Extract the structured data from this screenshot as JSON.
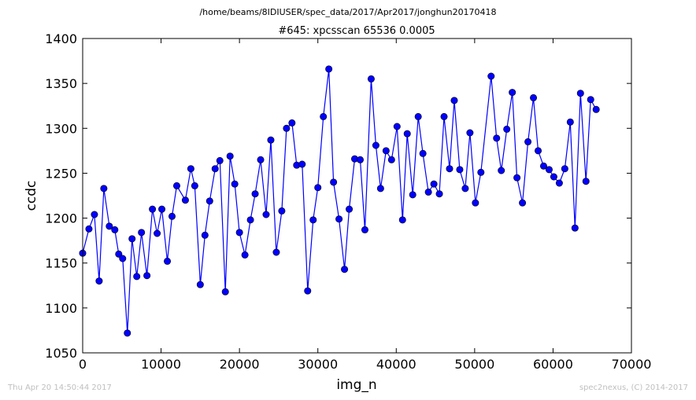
{
  "header": {
    "path": "/home/beams/8IDIUSER/spec_data/2017/Apr2017/jonghun20170418"
  },
  "footer": {
    "timestamp": "Thu Apr 20 14:50:44 2017",
    "credit": "spec2nexus, (C) 2014-2017"
  },
  "chart_data": {
    "type": "line",
    "title": "#645: xpcsscan 65536 0.0005",
    "xlabel": "img_n",
    "ylabel": "ccdc",
    "xlim": [
      0,
      70000
    ],
    "ylim": [
      1050,
      1400
    ],
    "xticks": [
      0,
      10000,
      20000,
      30000,
      40000,
      50000,
      60000,
      70000
    ],
    "yticks": [
      1050,
      1100,
      1150,
      1200,
      1250,
      1300,
      1350,
      1400
    ],
    "grid": false,
    "color": "#0000ff",
    "marker": "circle",
    "series": [
      {
        "x": [
          0,
          800,
          1500,
          2100,
          2700,
          3400,
          4100,
          4600,
          5100,
          5700,
          6300,
          6900,
          7500,
          8200,
          8900,
          9500,
          10100,
          10800,
          11400,
          12000,
          13100,
          13800,
          14300,
          15000,
          15600,
          16200,
          16900,
          17500,
          18200,
          18800,
          19400,
          20000,
          20700,
          21400,
          22000,
          22700,
          23400,
          24000,
          24700,
          25400,
          26000,
          26700,
          27300,
          28000,
          28700,
          29400,
          30000,
          30700,
          31400,
          32000,
          32700,
          33400,
          34000,
          34700,
          35400,
          36000,
          36800,
          37400,
          38000,
          38700,
          39400,
          40100,
          40800,
          41400,
          42100,
          42800,
          43400,
          44100,
          44800,
          45500,
          46100,
          46800,
          47400,
          48100,
          48800,
          49400,
          50100,
          50800,
          52100,
          52800,
          53400,
          54100,
          54800,
          55400,
          56100,
          56800,
          57500,
          58100,
          58800,
          59500,
          60100,
          60800,
          61500,
          62200,
          62800,
          63500,
          64200,
          64800,
          65500
        ],
        "y": [
          1161,
          1188,
          1204,
          1130,
          1233,
          1191,
          1187,
          1160,
          1155,
          1072,
          1177,
          1135,
          1184,
          1136,
          1210,
          1183,
          1210,
          1152,
          1202,
          1236,
          1220,
          1255,
          1236,
          1126,
          1181,
          1219,
          1255,
          1264,
          1118,
          1269,
          1238,
          1184,
          1159,
          1198,
          1227,
          1265,
          1204,
          1287,
          1162,
          1208,
          1300,
          1306,
          1259,
          1260,
          1119,
          1198,
          1234,
          1313,
          1366,
          1240,
          1199,
          1143,
          1210,
          1266,
          1265,
          1187,
          1355,
          1281,
          1233,
          1275,
          1265,
          1302,
          1198,
          1294,
          1226,
          1313,
          1272,
          1229,
          1238,
          1227,
          1313,
          1255,
          1331,
          1254,
          1233,
          1295,
          1217,
          1251,
          1358,
          1289,
          1253,
          1299,
          1340,
          1245,
          1217,
          1285,
          1334,
          1275,
          1258,
          1254,
          1246,
          1239,
          1255,
          1307,
          1189,
          1339,
          1241,
          1332,
          1321
        ]
      }
    ]
  }
}
